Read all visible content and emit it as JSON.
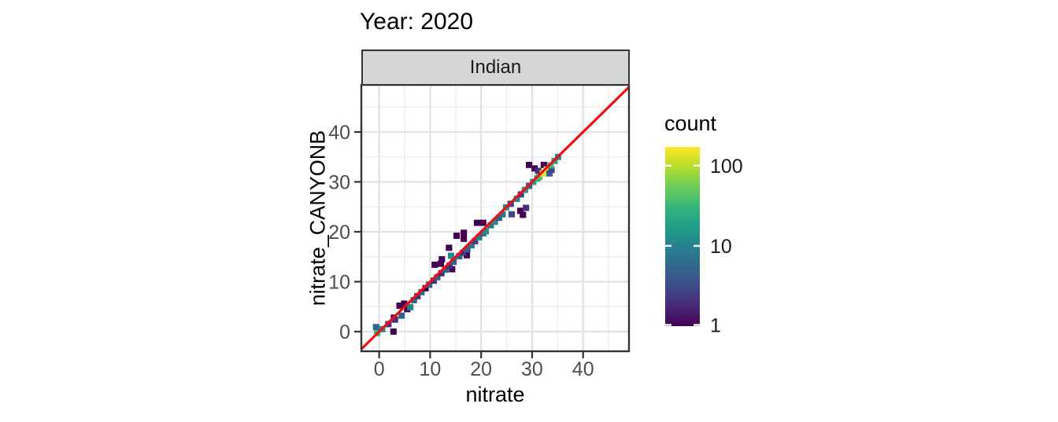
{
  "title": "Year: 2020",
  "facet": {
    "label": "Indian"
  },
  "axes": {
    "x": {
      "title": "nitrate",
      "tick_labels": [
        "0",
        "10",
        "20",
        "30",
        "40"
      ],
      "tick_values": [
        0,
        10,
        20,
        30,
        40
      ],
      "minor_values": [
        5,
        15,
        25,
        35,
        45
      ],
      "range": [
        -3.5,
        49.0
      ]
    },
    "y": {
      "title": "nitrate_CANYONB",
      "tick_labels": [
        "0",
        "10",
        "20",
        "30",
        "40"
      ],
      "tick_values": [
        0,
        10,
        20,
        30,
        40
      ],
      "minor_values": [
        5,
        15,
        25,
        35,
        45
      ],
      "range": [
        -3.94,
        49.44
      ]
    }
  },
  "legend": {
    "title": "count",
    "ticks": [
      {
        "label": "100",
        "value": 100
      },
      {
        "label": "10",
        "value": 10
      },
      {
        "label": "1",
        "value": 1
      }
    ],
    "scale": "log10",
    "scale_max": 171
  },
  "colors": {
    "reference_line": "#EE1111",
    "strip_bg": "#D6D6D6",
    "strip_border": "#333333",
    "panel_border": "#333333",
    "grid_major": "#E3E3E3",
    "grid_minor": "#F0F0F0",
    "tick_text": "#4D4D4D",
    "legend_text": "#1a1a1a",
    "viridis_stops": [
      "#440154",
      "#482878",
      "#3E4A89",
      "#31688E",
      "#26828E",
      "#1F9E89",
      "#35B779",
      "#6DCD59",
      "#B4DE2C",
      "#FDE725"
    ]
  },
  "chart_data": {
    "type": "heatmap",
    "subtype": "bin2d",
    "title": "Year: 2020",
    "facet": "Indian",
    "xlabel": "nitrate",
    "ylabel": "nitrate_CANYONB",
    "xlim": [
      -3.5,
      49.0
    ],
    "ylim": [
      -3.94,
      49.44
    ],
    "grid": "on",
    "legend_position": "right",
    "color_scale": {
      "name": "viridis",
      "transform": "log10",
      "domain": [
        1,
        171
      ]
    },
    "reference_line": {
      "equation": "y = x",
      "color": "#EE1111"
    },
    "bin_width": 1.25,
    "bins": [
      [
        -0.6,
        0.9,
        5
      ],
      [
        0.6,
        0.5,
        12
      ],
      [
        -0.4,
        -0.3,
        30
      ],
      [
        1.8,
        1.5,
        2
      ],
      [
        2.9,
        2.8,
        1
      ],
      [
        2.8,
        0.0,
        1
      ],
      [
        3.1,
        2.4,
        2
      ],
      [
        4.4,
        3.2,
        5
      ],
      [
        4.0,
        5.2,
        1
      ],
      [
        4.9,
        5.6,
        1
      ],
      [
        5.5,
        4.5,
        1
      ],
      [
        6.1,
        4.9,
        10
      ],
      [
        6.8,
        6.3,
        5
      ],
      [
        7.5,
        7.1,
        2
      ],
      [
        8.3,
        7.9,
        5
      ],
      [
        9.1,
        8.7,
        1
      ],
      [
        9.8,
        9.4,
        5
      ],
      [
        10.7,
        10.2,
        2
      ],
      [
        11.4,
        10.9,
        5
      ],
      [
        12.2,
        11.7,
        2
      ],
      [
        13.0,
        12.4,
        5
      ],
      [
        14.3,
        12.5,
        1
      ],
      [
        10.9,
        13.4,
        1
      ],
      [
        12.1,
        13.6,
        1
      ],
      [
        12.3,
        14.5,
        1
      ],
      [
        13.7,
        16.8,
        1
      ],
      [
        15.2,
        19.2,
        1
      ],
      [
        16.6,
        18.6,
        1
      ],
      [
        16.6,
        19.8,
        1
      ],
      [
        17.2,
        15.3,
        1
      ],
      [
        19.2,
        21.8,
        1
      ],
      [
        20.4,
        21.8,
        1
      ],
      [
        13.8,
        13.2,
        2
      ],
      [
        14.1,
        15.2,
        12
      ],
      [
        14.6,
        14.0,
        5
      ],
      [
        15.7,
        15.1,
        5
      ],
      [
        16.5,
        15.8,
        2
      ],
      [
        17.3,
        16.5,
        5
      ],
      [
        18.1,
        17.3,
        8
      ],
      [
        18.8,
        18.1,
        3
      ],
      [
        19.6,
        18.9,
        8
      ],
      [
        20.4,
        19.7,
        5
      ],
      [
        20.9,
        20.1,
        12
      ],
      [
        21.9,
        21.3,
        8
      ],
      [
        22.7,
        22.0,
        12
      ],
      [
        23.5,
        22.8,
        5
      ],
      [
        24.2,
        23.5,
        8
      ],
      [
        24.9,
        24.9,
        12
      ],
      [
        25.8,
        25.6,
        3
      ],
      [
        27.0,
        26.6,
        12
      ],
      [
        27.8,
        27.5,
        3
      ],
      [
        28.6,
        28.4,
        15
      ],
      [
        29.4,
        29.2,
        5
      ],
      [
        30.2,
        30.0,
        15
      ],
      [
        31.0,
        30.7,
        20
      ],
      [
        26.0,
        23.5,
        3
      ],
      [
        27.7,
        24.2,
        1
      ],
      [
        28.2,
        23.4,
        1
      ],
      [
        28.8,
        24.8,
        2
      ],
      [
        29.4,
        33.4,
        1
      ],
      [
        30.5,
        32.7,
        1
      ],
      [
        32.3,
        33.4,
        1
      ],
      [
        31.2,
        32.2,
        2
      ],
      [
        31.4,
        31.0,
        40
      ],
      [
        32.1,
        31.7,
        140
      ],
      [
        32.9,
        32.5,
        160
      ],
      [
        33.4,
        31.7,
        5
      ],
      [
        33.8,
        32.4,
        3
      ],
      [
        33.6,
        33.3,
        30
      ],
      [
        34.4,
        34.2,
        20
      ],
      [
        35.1,
        35.0,
        12
      ]
    ]
  }
}
